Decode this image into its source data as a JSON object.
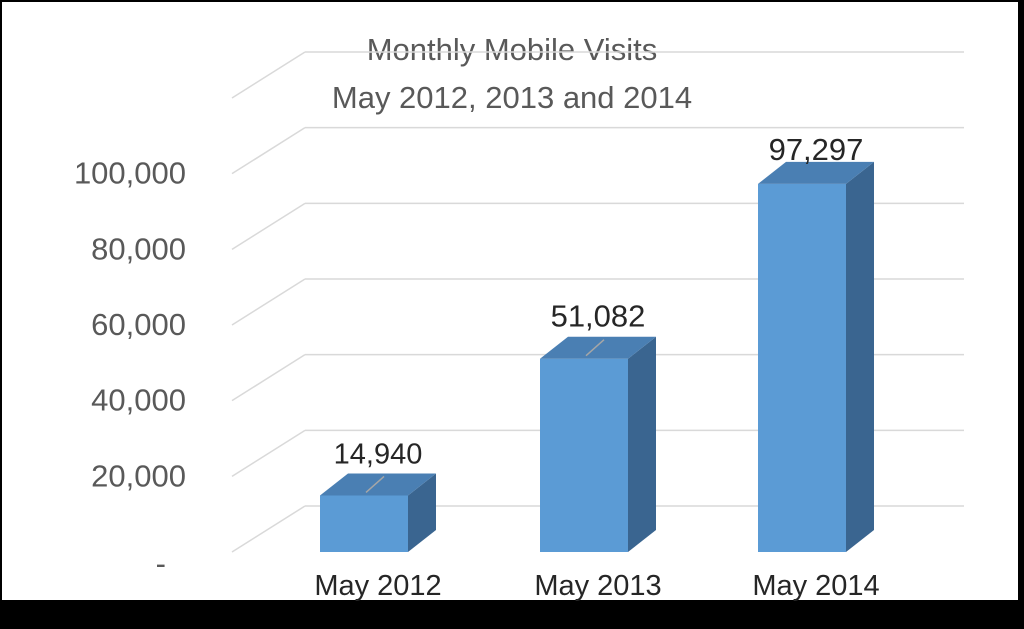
{
  "chart_data": {
    "type": "bar",
    "style": "3d-column",
    "title": "Monthly Mobile Visits",
    "subtitle": "May 2012, 2013 and 2014",
    "categories": [
      "May 2012",
      "May 2013",
      "May 2014"
    ],
    "values": [
      14940,
      51082,
      97297
    ],
    "data_labels": [
      "14,940",
      "51,082",
      "97,297"
    ],
    "y_ticks": [
      {
        "value": 0,
        "label": "-"
      },
      {
        "value": 20000,
        "label": "20,000"
      },
      {
        "value": 40000,
        "label": "40,000"
      },
      {
        "value": 60000,
        "label": "60,000"
      },
      {
        "value": 80000,
        "label": "80,000"
      },
      {
        "value": 100000,
        "label": "100,000"
      },
      {
        "value": 120000,
        "label": ""
      }
    ],
    "ylim": [
      0,
      120000
    ],
    "grid": true,
    "legend": "none",
    "colors": {
      "bar_front": "#5b9bd5",
      "bar_top": "#4a7fb3",
      "bar_side": "#3a6590",
      "grid": "#d9d9d9",
      "title": "#595959",
      "tick": "#595959"
    }
  }
}
